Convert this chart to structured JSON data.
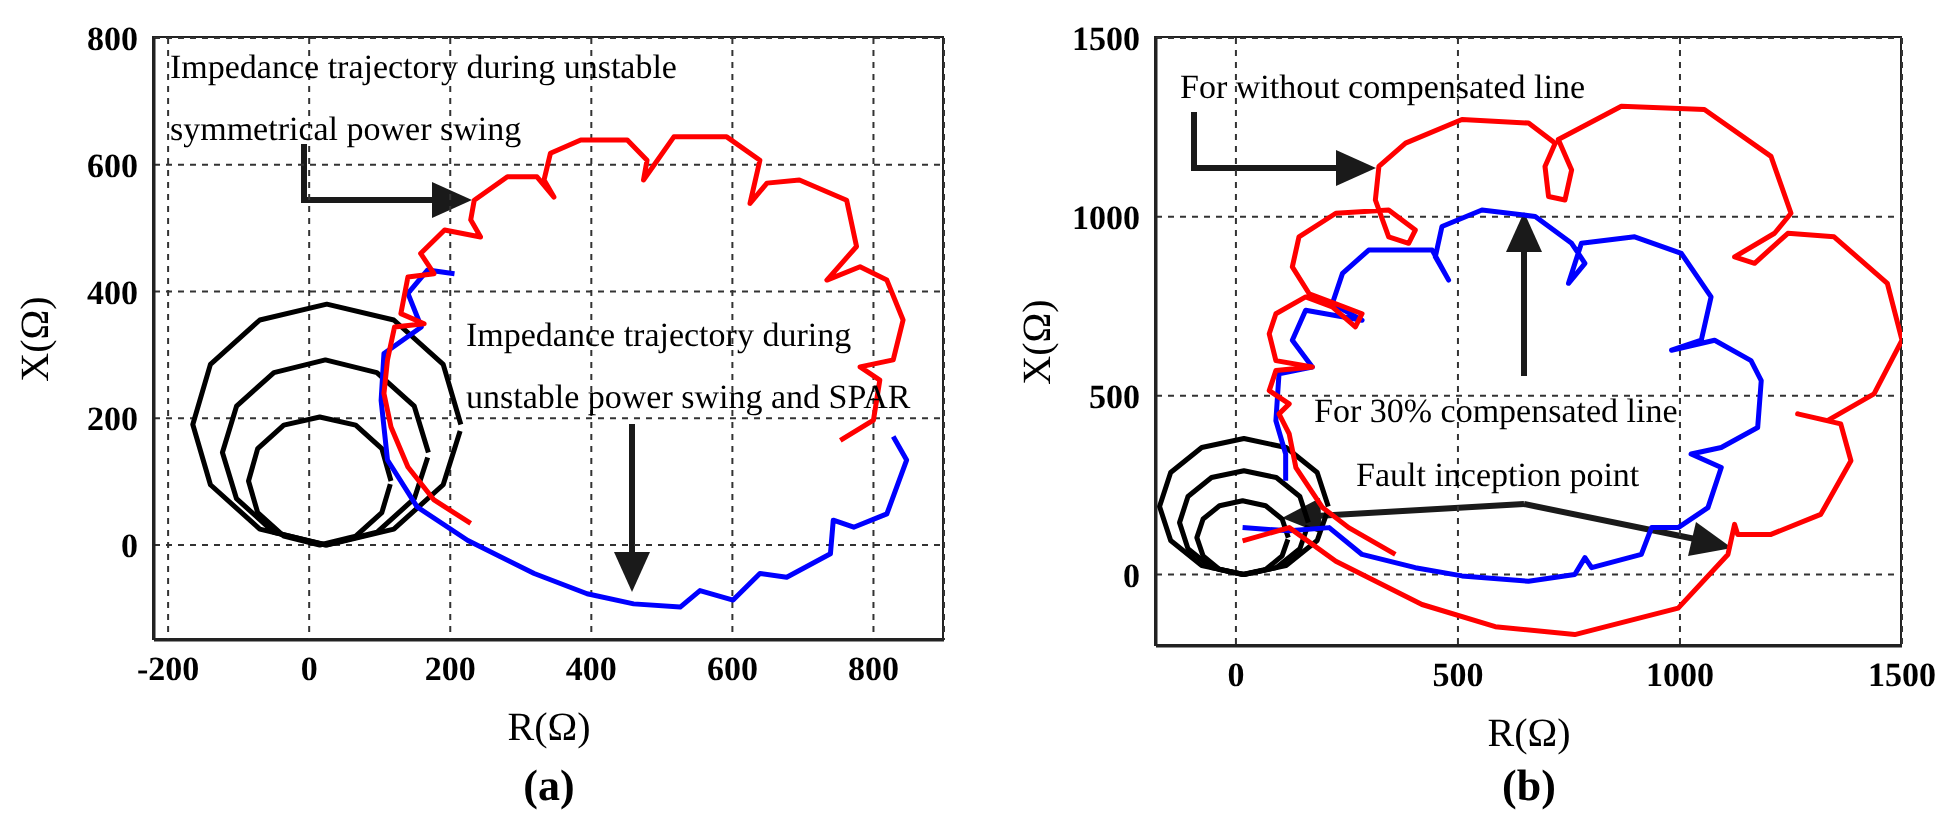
{
  "chart_data": [
    {
      "type": "line",
      "title": "(a)",
      "xlabel": "R(Ω)",
      "ylabel": "X(Ω)",
      "xlim": [
        -220,
        900
      ],
      "ylim": [
        -150,
        800
      ],
      "xticks": [
        -200,
        0,
        200,
        400,
        600,
        800
      ],
      "yticks": [
        0,
        200,
        400,
        600,
        800
      ],
      "grid": true,
      "marker": "none",
      "line_style": "solid",
      "annotations": [
        "Impedance trajectory during unstable symmetrical power swing",
        "Impedance trajectory during unstable power swing and SPAR"
      ],
      "series": [
        {
          "color": "#000000",
          "x": [
            215,
            190,
            120,
            25,
            -70,
            -140,
            -165,
            -140,
            -70,
            25,
            120,
            190,
            214
          ],
          "values": [
            190,
            285,
            355,
            380,
            355,
            285,
            190,
            95,
            25,
            0,
            25,
            95,
            180
          ]
        },
        {
          "color": "#000000",
          "x": [
            169,
            149,
            96,
            23,
            -50,
            -103,
            -123,
            -103,
            -50,
            23,
            96,
            149,
            168
          ],
          "values": [
            146,
            219,
            272,
            292,
            272,
            219,
            146,
            73,
            20,
            0,
            20,
            73,
            138
          ]
        },
        {
          "color": "#000000",
          "x": [
            116,
            103,
            66,
            15,
            -36,
            -73,
            -86,
            -73,
            -36,
            15,
            66,
            103,
            115
          ],
          "values": [
            101,
            152,
            189,
            202,
            189,
            152,
            101,
            51,
            14,
            0,
            14,
            51,
            96
          ]
        },
        {
          "color": "#0000ff",
          "x": [
            206,
            168,
            140,
            159,
            106,
            102,
            111,
            153,
            225,
            319,
            394,
            460,
            526,
            554,
            601,
            639,
            677,
            739,
            743,
            772,
            819,
            847,
            828
          ],
          "values": [
            428,
            434,
            397,
            344,
            302,
            228,
            134,
            60,
            7,
            -45,
            -77,
            -93,
            -98,
            -72,
            -87,
            -45,
            -51,
            -14,
            39,
            28,
            49,
            134,
            171
          ]
        },
        {
          "color": "#ff0000",
          "x": [
            229,
            177,
            140,
            116,
            106,
            111,
            121,
            163,
            130,
            140,
            177,
            158,
            192,
            243,
            229,
            234,
            281,
            323,
            347,
            333,
            342,
            385,
            451,
            479,
            474,
            517,
            592,
            639,
            625,
            649,
            695,
            762,
            776,
            734,
            781,
            819,
            842,
            828,
            781,
            809,
            800,
            753
          ],
          "values": [
            34,
            71,
            123,
            186,
            239,
            292,
            344,
            349,
            365,
            423,
            428,
            460,
            497,
            486,
            513,
            544,
            581,
            581,
            549,
            576,
            618,
            639,
            639,
            607,
            576,
            644,
            644,
            607,
            539,
            571,
            576,
            544,
            471,
            418,
            439,
            418,
            355,
            292,
            281,
            260,
            197,
            165
          ]
        }
      ]
    },
    {
      "type": "line",
      "title": "(b)",
      "xlabel": "R(Ω)",
      "ylabel": "X(Ω)",
      "xlim": [
        -180,
        1500
      ],
      "ylim": [
        -200,
        1500
      ],
      "xticks": [
        0,
        500,
        1000,
        1500
      ],
      "yticks": [
        0,
        500,
        1000,
        1500
      ],
      "grid": true,
      "marker": "none",
      "line_style": "solid",
      "annotations": [
        "For without compensated line",
        "For 30% compensated line",
        "Fault inception point"
      ],
      "series": [
        {
          "color": "#000000",
          "x": [
            208,
            183,
            113,
            18,
            -77,
            -147,
            -172,
            -147,
            -77,
            18,
            113,
            183,
            207
          ],
          "values": [
            190,
            285,
            355,
            380,
            355,
            285,
            190,
            95,
            25,
            0,
            25,
            95,
            180
          ]
        },
        {
          "color": "#000000",
          "x": [
            163,
            144,
            91,
            18,
            -55,
            -108,
            -127,
            -108,
            -55,
            18,
            91,
            144,
            162
          ],
          "values": [
            145,
            218,
            271,
            290,
            271,
            218,
            145,
            72,
            19,
            0,
            19,
            72,
            137
          ]
        },
        {
          "color": "#000000",
          "x": [
            118,
            104,
            67,
            15,
            -37,
            -74,
            -88,
            -74,
            -37,
            15,
            67,
            104,
            117
          ],
          "values": [
            103,
            155,
            192,
            206,
            192,
            155,
            103,
            52,
            14,
            0,
            14,
            52,
            98
          ]
        },
        {
          "color": "#0000ff",
          "x": [
            15,
            120,
            210,
            284,
            404,
            509,
            659,
            763,
            786,
            801,
            913,
            936,
            996,
            1063,
            1093,
            1025,
            1093,
            1175,
            1183,
            1160,
            1078,
            981,
            1048,
            1070,
            1003,
            898,
            778,
            749,
            786,
            756,
            674,
            554,
            464,
            449,
            479,
            442,
            299,
            240,
            217,
            284,
            157,
            127,
            172,
            97,
            90,
            112,
            112
          ],
          "values": [
            131,
            122,
            131,
            56,
            19,
            -4,
            -19,
            0,
            47,
            19,
            56,
            131,
            131,
            187,
            299,
            337,
            355,
            411,
            542,
            598,
            655,
            627,
            655,
            776,
            898,
            944,
            926,
            814,
            870,
            926,
            1001,
            1019,
            973,
            888,
            823,
            907,
            907,
            842,
            757,
            711,
            739,
            655,
            580,
            561,
            430,
            337,
            262
          ]
        },
        {
          "color": "#ff0000",
          "x": [
            15,
            120,
            225,
            419,
            584,
            763,
            996,
            1108,
            1123,
            1130,
            1205,
            1317,
            1385,
            1362,
            1265,
            1332,
            1437,
            1500,
            1467,
            1347,
            1243,
            1168,
            1123,
            1213,
            1250,
            1205,
            1055,
            868,
            726,
            756,
            741,
            704,
            696,
            719,
            659,
            509,
            382,
            322,
            314,
            344,
            389,
            404,
            344,
            225,
            142,
            127,
            165,
            225,
            284,
            269,
            217,
            157,
            90,
            75,
            90,
            172,
            90,
            75,
            120,
            97,
            120,
            135,
            195,
            254,
            359
          ],
          "values": [
            94,
            131,
            37,
            -84,
            -146,
            -168,
            -94,
            56,
            140,
            112,
            112,
            168,
            318,
            421,
            449,
            430,
            505,
            655,
            814,
            944,
            954,
            870,
            888,
            954,
            1010,
            1169,
            1300,
            1309,
            1216,
            1131,
            1047,
            1057,
            1141,
            1206,
            1262,
            1272,
            1206,
            1141,
            1047,
            944,
            926,
            963,
            1019,
            1010,
            944,
            860,
            785,
            757,
            729,
            692,
            748,
            776,
            729,
            673,
            598,
            580,
            570,
            514,
            477,
            449,
            393,
            299,
            187,
            131,
            56
          ]
        }
      ]
    }
  ]
}
